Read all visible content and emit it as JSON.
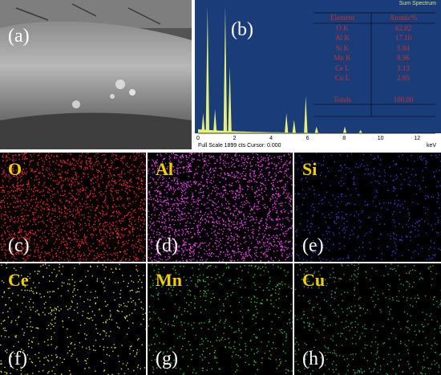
{
  "panels": {
    "a": {
      "label": "(a)"
    },
    "b": {
      "label": "(b)"
    },
    "maps": [
      {
        "tag": "(c)",
        "element": "O",
        "color": "#e0262a"
      },
      {
        "tag": "(d)",
        "element": "Al",
        "color": "#e040e0"
      },
      {
        "tag": "(e)",
        "element": "Si",
        "color": "#3b3bd8"
      },
      {
        "tag": "(f)",
        "element": "Ce",
        "color": "#d8d83a"
      },
      {
        "tag": "(g)",
        "element": "Mn",
        "color": "#2fbf3a"
      },
      {
        "tag": "(h)",
        "element": "Cu",
        "color": "#2f9f6a"
      }
    ]
  },
  "spectrum": {
    "title": "Sum Spectrum",
    "footer": "Full Scale 1899 cts Cursor: 0.000",
    "unit": "keV",
    "x_ticks": [
      "0",
      "2",
      "4",
      "6",
      "8",
      "10",
      "12"
    ],
    "table": {
      "header": [
        "Element",
        "Atomic%"
      ],
      "rows": [
        [
          "O K",
          "62.02"
        ],
        [
          "Al K",
          "17.10"
        ],
        [
          "Si K",
          "5.84"
        ],
        [
          "Mn K",
          "8.96"
        ],
        [
          "Ce L",
          "3.13"
        ],
        [
          "Cu L",
          "2.95"
        ]
      ],
      "total": [
        "Totals",
        "100.00"
      ]
    }
  },
  "chart_data": {
    "type": "bar",
    "x": [
      0.28,
      0.52,
      0.93,
      1.49,
      1.74,
      4.84,
      5.26,
      5.9,
      6.49,
      8.04,
      8.9
    ],
    "values": [
      300,
      1899,
      360,
      1899,
      1000,
      300,
      200,
      560,
      100,
      100,
      50
    ],
    "xlim": [
      0,
      13
    ],
    "ylim": [
      0,
      1899
    ],
    "xlabel": "keV",
    "ylabel": "",
    "color": "#e7f07a"
  }
}
